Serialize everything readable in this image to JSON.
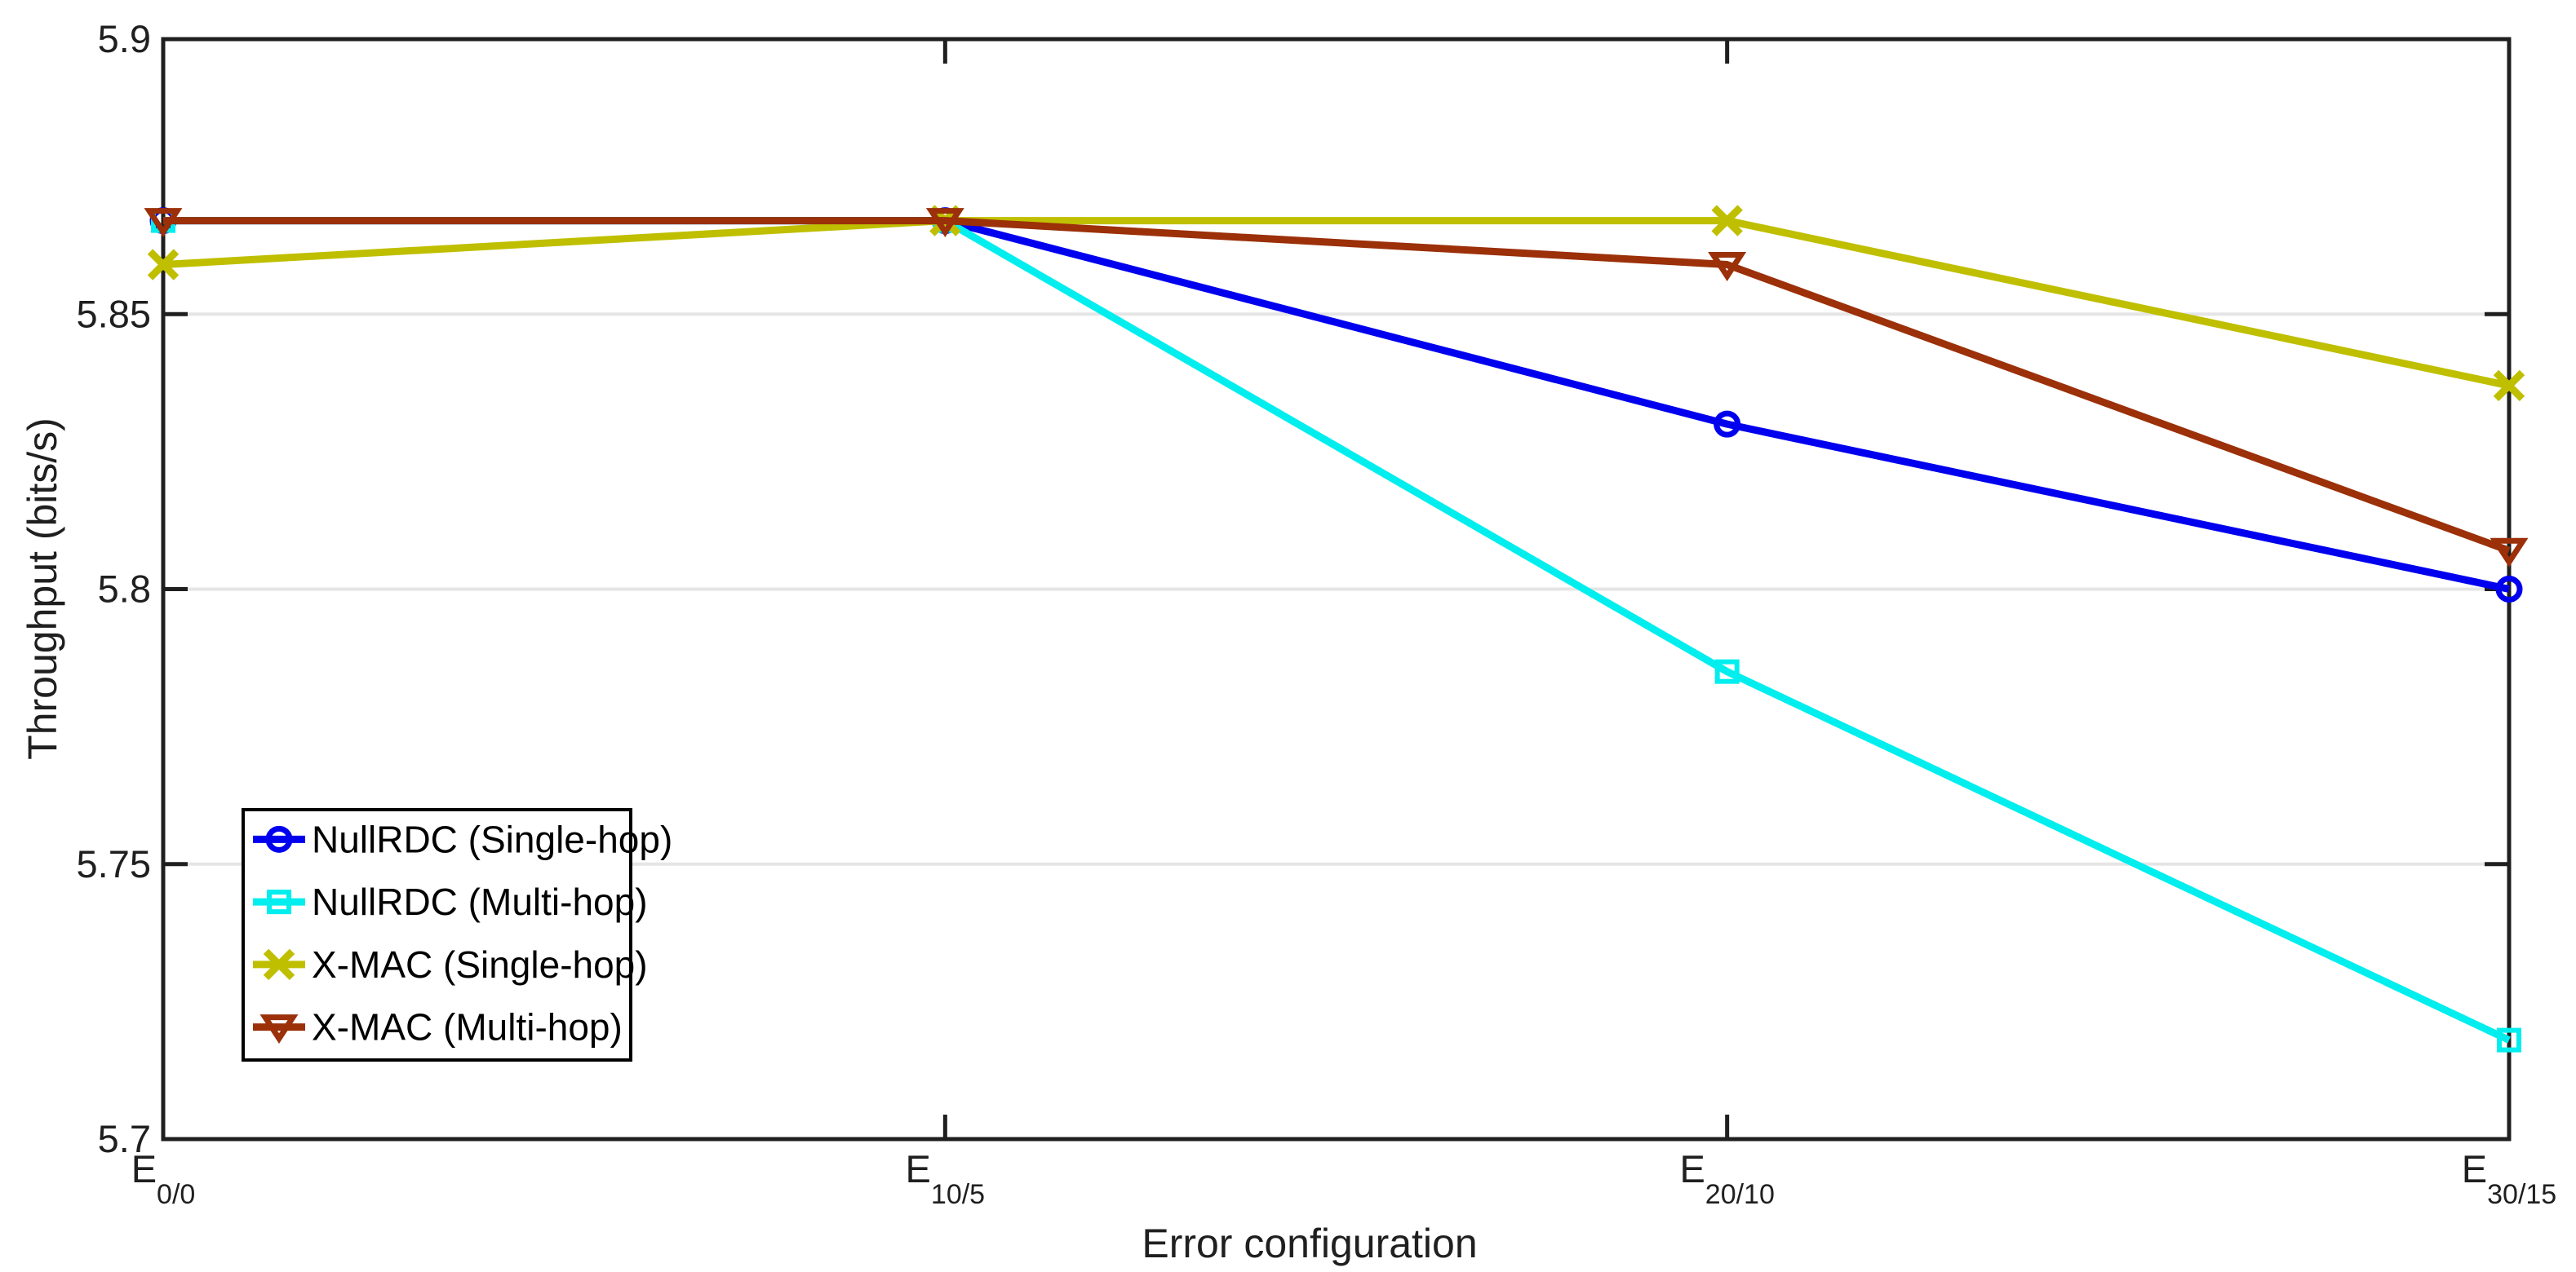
{
  "figure": {
    "background": "#ffffff",
    "axis_color": "#1f1f1f",
    "grid_color": "#e5e5e5",
    "legend_border_color": "#000000"
  },
  "chart_data": {
    "type": "line",
    "title": "",
    "xlabel": "Error configuration",
    "ylabel": "Throughput (bits/s)",
    "categories": [
      "E_0/0",
      "E_10/5",
      "E_20/10",
      "E_30/15"
    ],
    "x_tick_labels": [
      {
        "base": "E",
        "sub": "0/0"
      },
      {
        "base": "E",
        "sub": "10/5"
      },
      {
        "base": "E",
        "sub": "20/10"
      },
      {
        "base": "E",
        "sub": "30/15"
      }
    ],
    "ylim": [
      5.7,
      5.9
    ],
    "yticks": [
      5.7,
      5.75,
      5.8,
      5.85,
      5.9
    ],
    "ytick_labels": [
      "5.7",
      "5.75",
      "5.8",
      "5.85",
      "5.9"
    ],
    "grid": "horizontal-only",
    "legend_position": "inside-lower-left",
    "series": [
      {
        "name": "NullRDC (Single-hop)",
        "color": "#0000ee",
        "marker": "circle",
        "values": [
          5.867,
          5.867,
          5.83,
          5.8
        ]
      },
      {
        "name": "NullRDC (Multi-hop)",
        "color": "#00eeee",
        "marker": "square",
        "values": [
          5.867,
          5.867,
          5.785,
          5.718
        ]
      },
      {
        "name": "X-MAC (Single-hop)",
        "color": "#bfbf00",
        "marker": "x",
        "values": [
          5.859,
          5.867,
          5.867,
          5.837
        ]
      },
      {
        "name": "X-MAC (Multi-hop)",
        "color": "#9b3009",
        "marker": "triangle-down",
        "values": [
          5.867,
          5.867,
          5.859,
          5.807
        ]
      }
    ]
  }
}
